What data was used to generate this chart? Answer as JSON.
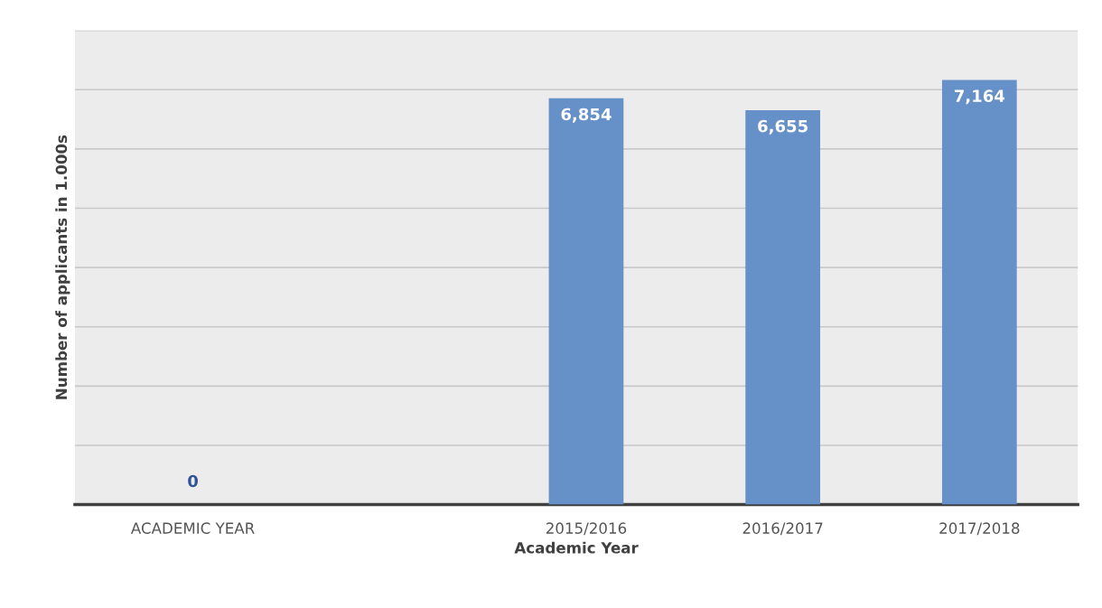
{
  "chart_data": {
    "type": "bar",
    "xlabel": "Academic Year",
    "ylabel": "Number of applicants in 1.000s",
    "categories": [
      "ACADEMIC YEAR",
      null,
      "2015/2016",
      "2016/2017",
      "2017/2018"
    ],
    "values": [
      0,
      null,
      6854,
      6655,
      7164
    ],
    "value_labels": [
      "0",
      null,
      "6,854",
      "6,655",
      "7,164"
    ],
    "color": "#6690c8",
    "ylim": [
      0,
      8000
    ],
    "yticks": [
      {
        "value": 0,
        "label": null
      },
      {
        "value": 1000,
        "label": null
      },
      {
        "value": 2000,
        "label": null
      },
      {
        "value": 3000,
        "label": null
      },
      {
        "value": 4000,
        "label": null
      },
      {
        "value": 5000,
        "label": null
      },
      {
        "value": 6000,
        "label": null
      },
      {
        "value": 7000,
        "label": null
      },
      {
        "value": 8000,
        "label": null
      }
    ],
    "grid": "y",
    "tick_labels": "x"
  }
}
